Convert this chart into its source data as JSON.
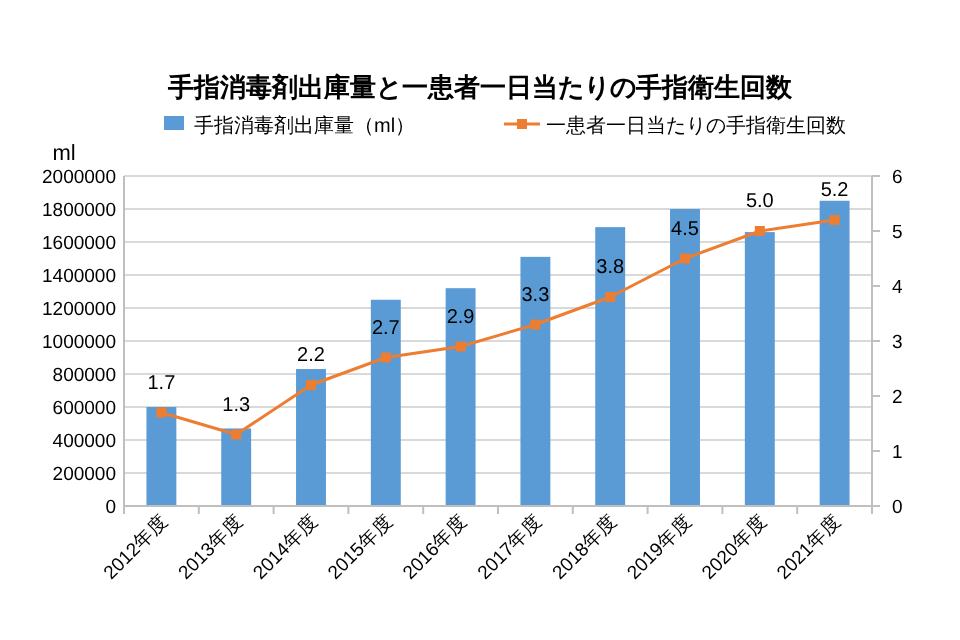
{
  "chart_data": {
    "type": "bar",
    "title": "手指消毒剤出庫量と一患者一日当たりの手指衛生回数",
    "ylabel": "ml",
    "categories": [
      "2012年度",
      "2013年度",
      "2014年度",
      "2015年度",
      "2016年度",
      "2017年度",
      "2018年度",
      "2019年度",
      "2020年度",
      "2021年度"
    ],
    "series": [
      {
        "name": "手指消毒剤出庫量（ml）",
        "color": "#5b9bd5",
        "values": [
          600000,
          470000,
          830000,
          1250000,
          1320000,
          1510000,
          1690000,
          1800000,
          1660000,
          1850000
        ]
      },
      {
        "name": "一患者一日当たりの手指衛生回数",
        "type": "line",
        "axis": "y2",
        "color": "#ed7d31",
        "marker": "square",
        "values": [
          1.7,
          1.3,
          2.2,
          2.7,
          2.9,
          3.3,
          3.8,
          4.5,
          5.0,
          5.2
        ],
        "value_labels": [
          "1.7",
          "1.3",
          "2.2",
          "2.7",
          "2.9",
          "3.3",
          "3.8",
          "4.5",
          "5.0",
          "5.2"
        ]
      }
    ],
    "ylim": [
      0,
      2000000
    ],
    "yticks": [
      0,
      200000,
      400000,
      600000,
      800000,
      1000000,
      1200000,
      1400000,
      1600000,
      1800000,
      2000000
    ],
    "y2lim": [
      0,
      6
    ],
    "y2ticks": [
      0,
      1,
      2,
      3,
      4,
      5,
      6
    ],
    "grid": "y",
    "legend": "top"
  }
}
